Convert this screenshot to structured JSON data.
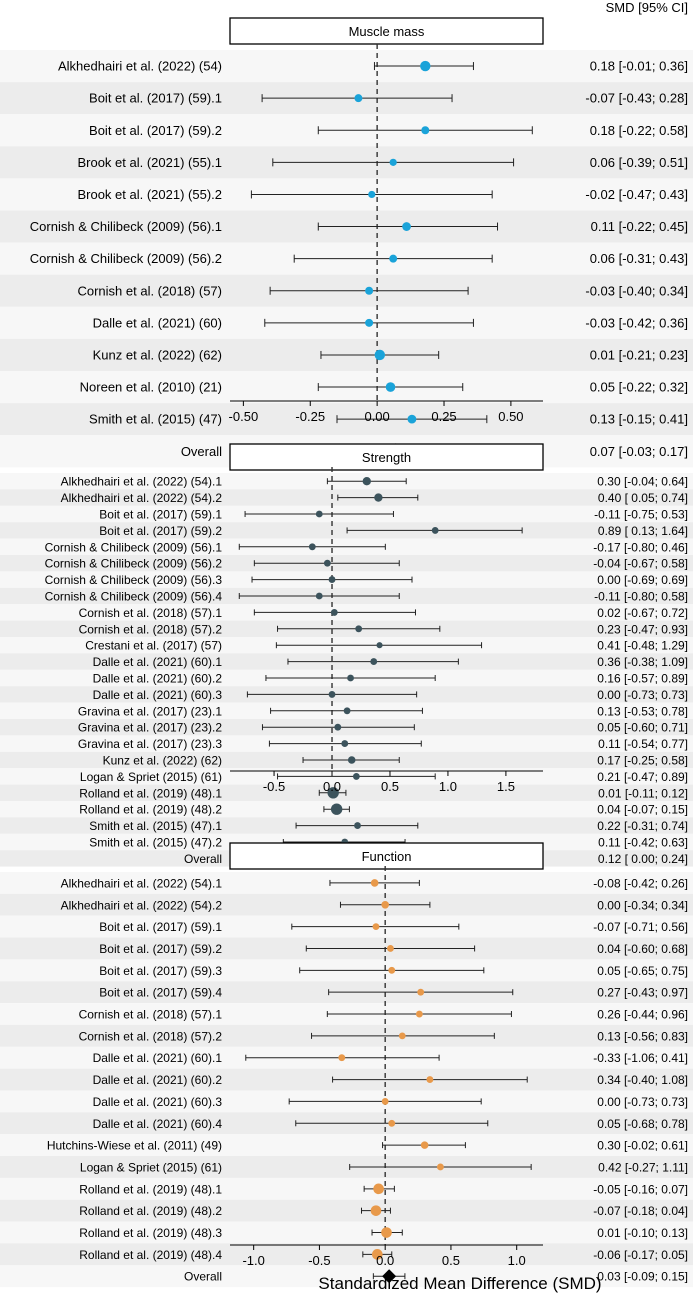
{
  "header": {
    "ci_label": "SMD [95% CI]"
  },
  "xaxis_label": "Standardized Mean Difference (SMD)",
  "colors": {
    "muscle": "#1aa3d9",
    "strength": "#3c535c",
    "function": "#e8994a",
    "overall": "#000000",
    "band": "#ececec",
    "grid": "#333333"
  },
  "chart_data": [
    {
      "type": "forest",
      "title": "Muscle mass",
      "xlim": [
        -0.55,
        0.62
      ],
      "ticks": [
        -0.5,
        -0.25,
        0,
        0.25,
        0.5
      ],
      "tick_labels": [
        "-0.50",
        "-0.25",
        "0.00",
        "0.25",
        "0.50"
      ],
      "rows": [
        {
          "label": "Alkhedhairi et al. (2022) (54)",
          "est": 0.18,
          "lo": -0.01,
          "hi": 0.36,
          "w": 1.3,
          "text": "0.18 [-0.01; 0.36]"
        },
        {
          "label": "Boit et al. (2017) (59).1",
          "est": -0.07,
          "lo": -0.43,
          "hi": 0.28,
          "w": 1.0,
          "text": "-0.07 [-0.43; 0.28]"
        },
        {
          "label": "Boit et al. (2017) (59).2",
          "est": 0.18,
          "lo": -0.22,
          "hi": 0.58,
          "w": 1.0,
          "text": "0.18 [-0.22; 0.58]"
        },
        {
          "label": "Brook et al. (2021) (55).1",
          "est": 0.06,
          "lo": -0.39,
          "hi": 0.51,
          "w": 0.9,
          "text": "0.06 [-0.39; 0.51]"
        },
        {
          "label": "Brook et al. (2021) (55).2",
          "est": -0.02,
          "lo": -0.47,
          "hi": 0.43,
          "w": 0.9,
          "text": "-0.02 [-0.47; 0.43]"
        },
        {
          "label": "Cornish & Chilibeck (2009) (56).1",
          "est": 0.11,
          "lo": -0.22,
          "hi": 0.45,
          "w": 1.1,
          "text": "0.11 [-0.22; 0.45]"
        },
        {
          "label": "Cornish & Chilibeck (2009) (56).2",
          "est": 0.06,
          "lo": -0.31,
          "hi": 0.43,
          "w": 1.0,
          "text": "0.06 [-0.31; 0.43]"
        },
        {
          "label": "Cornish et al. (2018) (57)",
          "est": -0.03,
          "lo": -0.4,
          "hi": 0.34,
          "w": 1.0,
          "text": "-0.03 [-0.40; 0.34]"
        },
        {
          "label": "Dalle et al. (2021) (60)",
          "est": -0.03,
          "lo": -0.42,
          "hi": 0.36,
          "w": 1.0,
          "text": "-0.03 [-0.42; 0.36]"
        },
        {
          "label": "Kunz et al. (2022) (62)",
          "est": 0.01,
          "lo": -0.21,
          "hi": 0.23,
          "w": 1.3,
          "text": "0.01 [-0.21; 0.23]"
        },
        {
          "label": "Noreen et al. (2010) (21)",
          "est": 0.05,
          "lo": -0.22,
          "hi": 0.32,
          "w": 1.2,
          "text": "0.05 [-0.22; 0.32]"
        },
        {
          "label": "Smith et al. (2015) (47)",
          "est": 0.13,
          "lo": -0.15,
          "hi": 0.41,
          "w": 1.1,
          "text": "0.13 [-0.15; 0.41]"
        }
      ],
      "overall": {
        "label": "Overall",
        "est": 0.07,
        "lo": -0.03,
        "hi": 0.17,
        "text": "0.07 [-0.03; 0.17]"
      }
    },
    {
      "type": "forest",
      "title": "Strength",
      "xlim": [
        -0.88,
        1.82
      ],
      "ticks": [
        -0.5,
        0,
        0.5,
        1.0,
        1.5
      ],
      "tick_labels": [
        "-0.5",
        "0.0",
        "0.5",
        "1.0",
        "1.5"
      ],
      "rows": [
        {
          "label": "Alkhedhairi et al. (2022) (54).1",
          "est": 0.3,
          "lo": -0.04,
          "hi": 0.64,
          "w": 1.1,
          "text": "0.30 [-0.04; 0.64]"
        },
        {
          "label": "Alkhedhairi et al. (2022) (54).2",
          "est": 0.4,
          "lo": 0.05,
          "hi": 0.74,
          "w": 1.1,
          "text": "0.40 [ 0.05; 0.74]"
        },
        {
          "label": "Boit et al. (2017) (59).1",
          "est": -0.11,
          "lo": -0.75,
          "hi": 0.53,
          "w": 0.9,
          "text": "-0.11 [-0.75; 0.53]"
        },
        {
          "label": "Boit et al. (2017) (59).2",
          "est": 0.89,
          "lo": 0.13,
          "hi": 1.64,
          "w": 0.9,
          "text": "0.89 [ 0.13; 1.64]"
        },
        {
          "label": "Cornish & Chilibeck (2009) (56).1",
          "est": -0.17,
          "lo": -0.8,
          "hi": 0.46,
          "w": 0.9,
          "text": "-0.17 [-0.80; 0.46]"
        },
        {
          "label": "Cornish & Chilibeck (2009) (56).2",
          "est": -0.04,
          "lo": -0.67,
          "hi": 0.58,
          "w": 0.9,
          "text": "-0.04 [-0.67; 0.58]"
        },
        {
          "label": "Cornish & Chilibeck (2009) (56).3",
          "est": 0.0,
          "lo": -0.69,
          "hi": 0.69,
          "w": 0.9,
          "text": "0.00 [-0.69; 0.69]"
        },
        {
          "label": "Cornish & Chilibeck (2009) (56).4",
          "est": -0.11,
          "lo": -0.8,
          "hi": 0.58,
          "w": 0.9,
          "text": "-0.11 [-0.80; 0.58]"
        },
        {
          "label": "Cornish et al. (2018) (57).1",
          "est": 0.02,
          "lo": -0.67,
          "hi": 0.72,
          "w": 0.9,
          "text": "0.02 [-0.67; 0.72]"
        },
        {
          "label": "Cornish et al. (2018) (57).2",
          "est": 0.23,
          "lo": -0.47,
          "hi": 0.93,
          "w": 0.9,
          "text": "0.23 [-0.47; 0.93]"
        },
        {
          "label": "Crestani et al. (2017) (57)",
          "est": 0.41,
          "lo": -0.48,
          "hi": 1.29,
          "w": 0.8,
          "text": "0.41 [-0.48; 1.29]"
        },
        {
          "label": "Dalle et al. (2021) (60).1",
          "est": 0.36,
          "lo": -0.38,
          "hi": 1.09,
          "w": 0.9,
          "text": "0.36 [-0.38; 1.09]"
        },
        {
          "label": "Dalle et al. (2021) (60).2",
          "est": 0.16,
          "lo": -0.57,
          "hi": 0.89,
          "w": 0.9,
          "text": "0.16 [-0.57; 0.89]"
        },
        {
          "label": "Dalle et al. (2021) (60).3",
          "est": 0.0,
          "lo": -0.73,
          "hi": 0.73,
          "w": 0.9,
          "text": "0.00 [-0.73; 0.73]"
        },
        {
          "label": "Gravina et al. (2017) (23).1",
          "est": 0.13,
          "lo": -0.53,
          "hi": 0.78,
          "w": 0.9,
          "text": "0.13 [-0.53; 0.78]"
        },
        {
          "label": "Gravina et al. (2017) (23).2",
          "est": 0.05,
          "lo": -0.6,
          "hi": 0.71,
          "w": 0.9,
          "text": "0.05 [-0.60; 0.71]"
        },
        {
          "label": "Gravina et al. (2017) (23).3",
          "est": 0.11,
          "lo": -0.54,
          "hi": 0.77,
          "w": 0.9,
          "text": "0.11 [-0.54; 0.77]"
        },
        {
          "label": "Kunz et al. (2022) (62)",
          "est": 0.17,
          "lo": -0.25,
          "hi": 0.58,
          "w": 1.0,
          "text": "0.17 [-0.25; 0.58]"
        },
        {
          "label": "Logan & Spriet (2015) (61)",
          "est": 0.21,
          "lo": -0.47,
          "hi": 0.89,
          "w": 0.9,
          "text": "0.21 [-0.47; 0.89]"
        },
        {
          "label": "Rolland et al. (2019) (48).1",
          "est": 0.01,
          "lo": -0.11,
          "hi": 0.12,
          "w": 1.5,
          "text": "0.01 [-0.11; 0.12]"
        },
        {
          "label": "Rolland et al. (2019) (48).2",
          "est": 0.04,
          "lo": -0.07,
          "hi": 0.15,
          "w": 1.5,
          "text": "0.04 [-0.07; 0.15]"
        },
        {
          "label": "Smith et al. (2015) (47).1",
          "est": 0.22,
          "lo": -0.31,
          "hi": 0.74,
          "w": 0.9,
          "text": "0.22 [-0.31; 0.74]"
        },
        {
          "label": "Smith et al. (2015) (47).2",
          "est": 0.11,
          "lo": -0.42,
          "hi": 0.63,
          "w": 0.9,
          "text": "0.11 [-0.42; 0.63]"
        }
      ],
      "overall": {
        "label": "Overall",
        "est": 0.12,
        "lo": 0.0,
        "hi": 0.24,
        "text": "0.12 [ 0.00; 0.24]"
      }
    },
    {
      "type": "forest",
      "title": "Function",
      "xlim": [
        -1.18,
        1.2
      ],
      "ticks": [
        -1.0,
        -0.5,
        0,
        0.5,
        1.0
      ],
      "tick_labels": [
        "-1.0",
        "-0.5",
        "0.0",
        "0.5",
        "1.0"
      ],
      "rows": [
        {
          "label": "Alkhedhairi et al. (2022) (54).1",
          "est": -0.08,
          "lo": -0.42,
          "hi": 0.26,
          "w": 1.0,
          "text": "-0.08 [-0.42; 0.26]"
        },
        {
          "label": "Alkhedhairi et al. (2022) (54).2",
          "est": 0.0,
          "lo": -0.34,
          "hi": 0.34,
          "w": 1.0,
          "text": "0.00 [-0.34; 0.34]"
        },
        {
          "label": "Boit et al. (2017) (59).1",
          "est": -0.07,
          "lo": -0.71,
          "hi": 0.56,
          "w": 0.9,
          "text": "-0.07 [-0.71; 0.56]"
        },
        {
          "label": "Boit et al. (2017) (59).2",
          "est": 0.04,
          "lo": -0.6,
          "hi": 0.68,
          "w": 0.9,
          "text": "0.04 [-0.60; 0.68]"
        },
        {
          "label": "Boit et al. (2017) (59).3",
          "est": 0.05,
          "lo": -0.65,
          "hi": 0.75,
          "w": 0.9,
          "text": "0.05 [-0.65; 0.75]"
        },
        {
          "label": "Boit et al. (2017) (59).4",
          "est": 0.27,
          "lo": -0.43,
          "hi": 0.97,
          "w": 0.9,
          "text": "0.27 [-0.43; 0.97]"
        },
        {
          "label": "Cornish et al. (2018) (57).1",
          "est": 0.26,
          "lo": -0.44,
          "hi": 0.96,
          "w": 0.9,
          "text": "0.26 [-0.44; 0.96]"
        },
        {
          "label": "Cornish et al. (2018) (57).2",
          "est": 0.13,
          "lo": -0.56,
          "hi": 0.83,
          "w": 0.9,
          "text": "0.13 [-0.56; 0.83]"
        },
        {
          "label": "Dalle et al. (2021) (60).1",
          "est": -0.33,
          "lo": -1.06,
          "hi": 0.41,
          "w": 0.9,
          "text": "-0.33 [-1.06; 0.41]"
        },
        {
          "label": "Dalle et al. (2021) (60).2",
          "est": 0.34,
          "lo": -0.4,
          "hi": 1.08,
          "w": 0.9,
          "text": "0.34 [-0.40; 1.08]"
        },
        {
          "label": "Dalle et al. (2021) (60).3",
          "est": 0.0,
          "lo": -0.73,
          "hi": 0.73,
          "w": 0.9,
          "text": "0.00 [-0.73; 0.73]"
        },
        {
          "label": "Dalle et al. (2021) (60).4",
          "est": 0.05,
          "lo": -0.68,
          "hi": 0.78,
          "w": 0.9,
          "text": "0.05 [-0.68; 0.78]"
        },
        {
          "label": "Hutchins-Wiese et al. (2011) (49)",
          "est": 0.3,
          "lo": -0.02,
          "hi": 0.61,
          "w": 1.0,
          "text": "0.30 [-0.02; 0.61]"
        },
        {
          "label": "Logan & Spriet (2015) (61)",
          "est": 0.42,
          "lo": -0.27,
          "hi": 1.11,
          "w": 0.9,
          "text": "0.42 [-0.27; 1.11]"
        },
        {
          "label": "Rolland et al. (2019) (48).1",
          "est": -0.05,
          "lo": -0.16,
          "hi": 0.07,
          "w": 1.4,
          "text": "-0.05 [-0.16; 0.07]"
        },
        {
          "label": "Rolland et al. (2019) (48).2",
          "est": -0.07,
          "lo": -0.18,
          "hi": 0.04,
          "w": 1.4,
          "text": "-0.07 [-0.18; 0.04]"
        },
        {
          "label": "Rolland et al. (2019) (48).3",
          "est": 0.01,
          "lo": -0.1,
          "hi": 0.13,
          "w": 1.4,
          "text": "0.01 [-0.10; 0.13]"
        },
        {
          "label": "Rolland et al. (2019) (48).4",
          "est": -0.06,
          "lo": -0.17,
          "hi": 0.05,
          "w": 1.4,
          "text": "-0.06 [-0.17; 0.05]"
        }
      ],
      "overall": {
        "label": "Overall",
        "est": 0.03,
        "lo": -0.09,
        "hi": 0.15,
        "text": "0.03 [-0.09; 0.15]"
      }
    }
  ]
}
